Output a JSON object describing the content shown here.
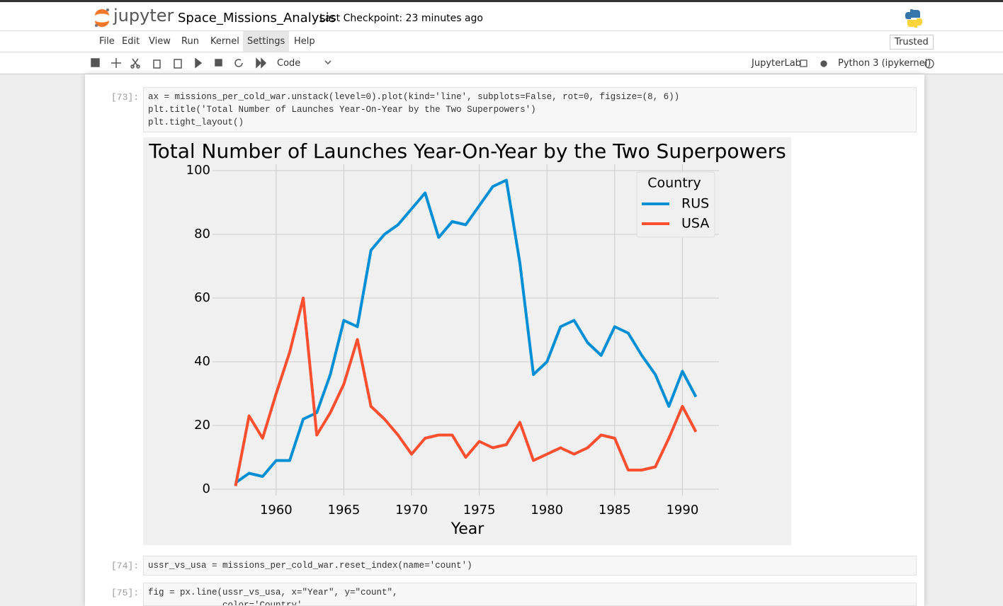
{
  "header": {
    "logo": "jupyter",
    "notebook_name": "Space_Missions_Analysis",
    "checkpoint": "Last Checkpoint: 23 minutes ago"
  },
  "menu": {
    "items": [
      "File",
      "Edit",
      "View",
      "Run",
      "Kernel",
      "Settings",
      "Help"
    ],
    "trusted": "Trusted"
  },
  "toolbar": {
    "cell_type": "Code",
    "jupyterlab": "JupyterLab",
    "kernel": "Python 3 (ipykernel)"
  },
  "cells": [
    {
      "prompt": "[73]:",
      "code": [
        "ax = missions_per_cold_war.unstack(level=0).plot(kind='line', subplots=False, rot=0, figsize=(8, 6))",
        "plt.title('Total Number of Launches Year-On-Year by the Two Superpowers')",
        "plt.tight_layout()"
      ]
    },
    {
      "prompt": "[74]:",
      "code": [
        "ussr_vs_usa = missions_per_cold_war.reset_index(name='count')"
      ]
    },
    {
      "prompt": "[75]:",
      "code": [
        "fig = px.line(ussr_vs_usa, x=\"Year\", y=\"count\",",
        "              color='Country',"
      ]
    }
  ],
  "chart_data": {
    "type": "line",
    "title": "Total Number of Launches Year-On-Year by the Two Superpowers",
    "x_label": "Year",
    "legend_title": "Country",
    "legend": "upper right",
    "grid": true,
    "x": [
      1957,
      1958,
      1959,
      1960,
      1961,
      1962,
      1963,
      1964,
      1965,
      1966,
      1967,
      1968,
      1969,
      1970,
      1971,
      1972,
      1973,
      1974,
      1975,
      1976,
      1977,
      1978,
      1979,
      1980,
      1981,
      1982,
      1983,
      1984,
      1985,
      1986,
      1987,
      1988,
      1989,
      1990,
      1991
    ],
    "series": [
      {
        "name": "RUS",
        "color": "#008fd5",
        "values": [
          2,
          5,
          4,
          9,
          9,
          22,
          24,
          36,
          53,
          51,
          75,
          80,
          83,
          88,
          93,
          79,
          84,
          83,
          89,
          95,
          97,
          71,
          36,
          40,
          51,
          53,
          46,
          42,
          51,
          49,
          42,
          36,
          26,
          37,
          29
        ]
      },
      {
        "name": "USA",
        "color": "#fc4f30",
        "values": [
          1,
          23,
          16,
          30,
          43,
          60,
          17,
          24,
          33,
          47,
          26,
          22,
          17,
          11,
          16,
          17,
          17,
          10,
          15,
          13,
          14,
          21,
          9,
          11,
          13,
          11,
          13,
          17,
          16,
          6,
          6,
          7,
          16,
          26,
          18
        ]
      }
    ],
    "xlim": [
      1955.3,
      1992.7
    ],
    "xticks": [
      1960,
      1965,
      1970,
      1975,
      1980,
      1985,
      1990
    ],
    "ylim": [
      -2,
      102
    ],
    "yticks": [
      0,
      20,
      40,
      60,
      80,
      100
    ]
  }
}
